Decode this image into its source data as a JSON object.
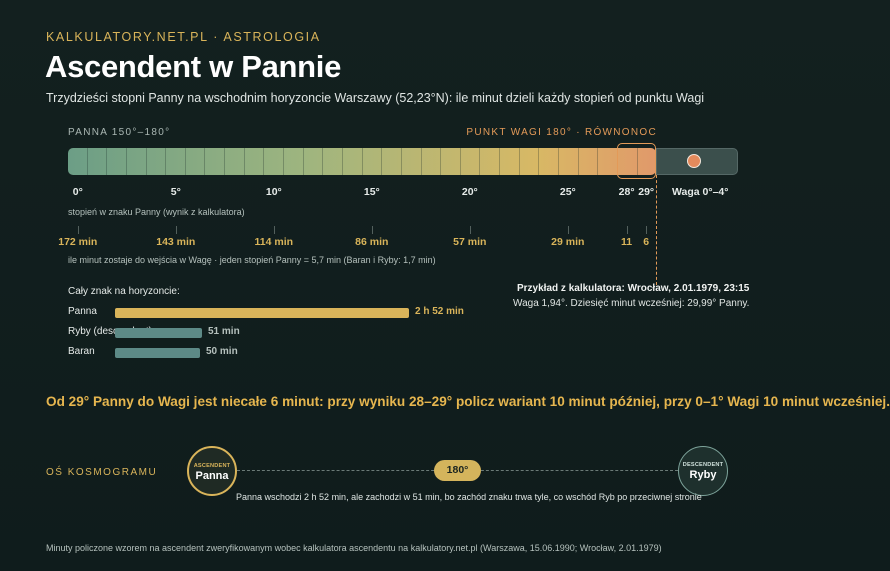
{
  "header": {
    "eyebrow": "KALKULATORY.NET.PL · ASTROLOGIA",
    "title": "Ascendent w Pannie",
    "subtitle": "Trzydzieści stopni Panny na wschodnim horyzoncie Warszawy (52,23°N): ile minut dzieli każdy stopień od punktu Wagi"
  },
  "scale": {
    "left_label": "PANNA 150°–180°",
    "right_label": "PUNKT WAGI 180° · RÓWNONOC",
    "waga_label": "Waga 0°–4°",
    "degree_ticks": [
      {
        "deg": 0,
        "label": "0°"
      },
      {
        "deg": 5,
        "label": "5°"
      },
      {
        "deg": 10,
        "label": "10°"
      },
      {
        "deg": 15,
        "label": "15°"
      },
      {
        "deg": 20,
        "label": "20°"
      },
      {
        "deg": 25,
        "label": "25°"
      },
      {
        "deg": 28,
        "label": "28°"
      },
      {
        "deg": 29,
        "label": "29°"
      }
    ],
    "degree_caption": "stopień w znaku Panny (wynik z kalkulatora)",
    "minute_ticks": [
      {
        "deg": 0,
        "label": "172 min"
      },
      {
        "deg": 5,
        "label": "143 min"
      },
      {
        "deg": 10,
        "label": "114 min"
      },
      {
        "deg": 15,
        "label": "86 min"
      },
      {
        "deg": 20,
        "label": "57 min"
      },
      {
        "deg": 25,
        "label": "29 min"
      },
      {
        "deg": 28,
        "label": "11"
      },
      {
        "deg": 29,
        "label": "6"
      }
    ],
    "minute_caption": "ile minut zostaje do wejścia w Wagę · jeden stopień Panny = 5,7 min (Baran i Ryby: 1,7 min)"
  },
  "example": {
    "title": "Przykład z kalkulatora: Wrocław, 2.01.1979, 23:15",
    "text": "Waga 1,94°. Dziesięć minut wcześniej: 29,99° Panny."
  },
  "rise_times": {
    "caption": "Cały znak na horyzoncie:",
    "rows": [
      {
        "label": "Panna",
        "minutes": 172,
        "value": "2 h 52 min",
        "color": "#d9b45a"
      },
      {
        "label": "Ryby (descendent)",
        "minutes": 51,
        "value": "51 min",
        "color": "#5d8a87"
      },
      {
        "label": "Baran",
        "minutes": 50,
        "value": "50 min",
        "color": "#5d8a87"
      }
    ]
  },
  "headline": "Od 29° Panny do Wagi jest niecałe 6 minut: przy wyniku 28–29° policz wariant 10 minut później, przy 0–1° Wagi 10 minut wcześniej.",
  "axis": {
    "label": "OŚ KOSMOGRAMU",
    "asc_small": "ASCENDENT",
    "asc_name": "Panna",
    "desc_small": "DESCENDENT",
    "desc_name": "Ryby",
    "angle": "180°",
    "caption": "Panna wschodzi 2 h 52 min, ale zachodzi w 51 min, bo zachód znaku trwa tyle, co wschód Ryb po przeciwnej stronie"
  },
  "footer": "Minuty policzone wzorem na ascendent zweryfikowanym wobec kalkulatora ascendentu na kalkulatory.net.pl (Warszawa, 15.06.1990; Wrocław, 2.01.1979)",
  "colors": {
    "gold": "#d9b45a",
    "orange": "#e39a58",
    "teal": "#5d8a87",
    "background": "#13201f"
  }
}
